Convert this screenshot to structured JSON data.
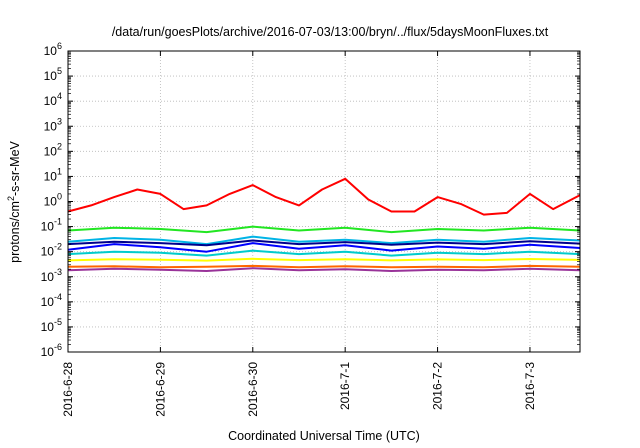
{
  "chart_data": {
    "type": "line",
    "title": "/data/run/goesPlots/archive/2016-07-03/13:00/bryn/../flux/5daysMoonFluxes.txt",
    "xlabel": "Coordinated Universal Time (UTC)",
    "ylabel": {
      "base": "protons/cm",
      "sup": "2",
      "rest": "-s-sr-MeV"
    },
    "yscale": "log",
    "ylim": [
      1e-06,
      1000000.0
    ],
    "y_ticks": [
      {
        "value": 1e-06,
        "base": "10",
        "exp": "-6"
      },
      {
        "value": 1e-05,
        "base": "10",
        "exp": "-5"
      },
      {
        "value": 0.0001,
        "base": "10",
        "exp": "-4"
      },
      {
        "value": 0.001,
        "base": "10",
        "exp": "-3"
      },
      {
        "value": 0.01,
        "base": "10",
        "exp": "-2"
      },
      {
        "value": 0.1,
        "base": "10",
        "exp": "-1"
      },
      {
        "value": 1.0,
        "base": "10",
        "exp": "0"
      },
      {
        "value": 10.0,
        "base": "10",
        "exp": "1"
      },
      {
        "value": 100.0,
        "base": "10",
        "exp": "2"
      },
      {
        "value": 1000.0,
        "base": "10",
        "exp": "3"
      },
      {
        "value": 10000.0,
        "base": "10",
        "exp": "4"
      },
      {
        "value": 100000.0,
        "base": "10",
        "exp": "5"
      },
      {
        "value": 1000000.0,
        "base": "10",
        "exp": "6"
      }
    ],
    "xlim": [
      "2016-06-28 00:00",
      "2016-07-03 13:00"
    ],
    "x_ticks": [
      "2016-6-28",
      "2016-6-29",
      "2016-6-30",
      "2016-7-1",
      "2016-7-2",
      "2016-7-3"
    ],
    "grid": true,
    "series": [
      {
        "color": "#ff0000",
        "x": [
          "2016-06-28 00:00",
          "2016-06-28 06:00",
          "2016-06-28 12:00",
          "2016-06-28 18:00",
          "2016-06-29 00:00",
          "2016-06-29 06:00",
          "2016-06-29 12:00",
          "2016-06-29 18:00",
          "2016-06-30 00:00",
          "2016-06-30 06:00",
          "2016-06-30 12:00",
          "2016-06-30 18:00",
          "2016-07-01 00:00",
          "2016-07-01 06:00",
          "2016-07-01 12:00",
          "2016-07-01 18:00",
          "2016-07-02 00:00",
          "2016-07-02 06:00",
          "2016-07-02 12:00",
          "2016-07-02 18:00",
          "2016-07-03 00:00",
          "2016-07-03 06:00",
          "2016-07-03 13:00"
        ],
        "y": [
          0.4,
          0.7,
          1.5,
          3.0,
          2.0,
          0.5,
          0.7,
          2.0,
          4.5,
          1.5,
          0.7,
          3.0,
          8.0,
          1.2,
          0.4,
          0.4,
          1.5,
          0.8,
          0.3,
          0.35,
          2.0,
          0.5,
          1.8
        ]
      },
      {
        "color": "#22e622",
        "x": [
          "2016-06-28 00:00",
          "2016-06-28 12:00",
          "2016-06-29 00:00",
          "2016-06-29 12:00",
          "2016-06-30 00:00",
          "2016-06-30 12:00",
          "2016-07-01 00:00",
          "2016-07-01 12:00",
          "2016-07-02 00:00",
          "2016-07-02 12:00",
          "2016-07-03 00:00",
          "2016-07-03 13:00"
        ],
        "y": [
          0.07,
          0.09,
          0.08,
          0.06,
          0.1,
          0.07,
          0.09,
          0.06,
          0.08,
          0.07,
          0.09,
          0.07
        ]
      },
      {
        "color": "#00b4e6",
        "x": [
          "2016-06-28 00:00",
          "2016-06-28 12:00",
          "2016-06-29 00:00",
          "2016-06-29 12:00",
          "2016-06-30 00:00",
          "2016-06-30 12:00",
          "2016-07-01 00:00",
          "2016-07-01 12:00",
          "2016-07-02 00:00",
          "2016-07-02 12:00",
          "2016-07-03 00:00",
          "2016-07-03 13:00"
        ],
        "y": [
          0.025,
          0.035,
          0.03,
          0.02,
          0.04,
          0.025,
          0.03,
          0.022,
          0.03,
          0.025,
          0.035,
          0.028
        ]
      },
      {
        "color": "#0000ff",
        "x": [
          "2016-06-28 00:00",
          "2016-06-28 12:00",
          "2016-06-29 00:00",
          "2016-06-29 12:00",
          "2016-06-30 00:00",
          "2016-06-30 12:00",
          "2016-07-01 00:00",
          "2016-07-01 12:00",
          "2016-07-02 00:00",
          "2016-07-02 12:00",
          "2016-07-03 00:00",
          "2016-07-03 13:00"
        ],
        "y": [
          0.012,
          0.02,
          0.015,
          0.01,
          0.022,
          0.013,
          0.018,
          0.011,
          0.016,
          0.013,
          0.019,
          0.014
        ]
      },
      {
        "color": "#00008b",
        "x": [
          "2016-06-28 00:00",
          "2016-06-28 12:00",
          "2016-06-29 00:00",
          "2016-06-29 12:00",
          "2016-06-30 00:00",
          "2016-06-30 12:00",
          "2016-07-01 00:00",
          "2016-07-01 12:00",
          "2016-07-02 00:00",
          "2016-07-02 12:00",
          "2016-07-03 00:00",
          "2016-07-03 13:00"
        ],
        "y": [
          0.02,
          0.025,
          0.022,
          0.018,
          0.028,
          0.02,
          0.024,
          0.019,
          0.023,
          0.02,
          0.026,
          0.021
        ]
      },
      {
        "color": "#00cccc",
        "x": [
          "2016-06-28 00:00",
          "2016-06-28 12:00",
          "2016-06-29 00:00",
          "2016-06-29 12:00",
          "2016-06-30 00:00",
          "2016-06-30 12:00",
          "2016-07-01 00:00",
          "2016-07-01 12:00",
          "2016-07-02 00:00",
          "2016-07-02 12:00",
          "2016-07-03 00:00",
          "2016-07-03 13:00"
        ],
        "y": [
          0.008,
          0.01,
          0.009,
          0.007,
          0.011,
          0.008,
          0.01,
          0.007,
          0.009,
          0.008,
          0.01,
          0.008
        ]
      },
      {
        "color": "#ffff00",
        "x": [
          "2016-06-28 00:00",
          "2016-06-28 12:00",
          "2016-06-29 00:00",
          "2016-06-29 12:00",
          "2016-06-30 00:00",
          "2016-06-30 12:00",
          "2016-07-01 00:00",
          "2016-07-01 12:00",
          "2016-07-02 00:00",
          "2016-07-02 12:00",
          "2016-07-03 00:00",
          "2016-07-03 13:00"
        ],
        "y": [
          0.0045,
          0.005,
          0.0048,
          0.0044,
          0.0052,
          0.0046,
          0.005,
          0.0045,
          0.0049,
          0.0046,
          0.0051,
          0.0047
        ]
      },
      {
        "color": "#ff6600",
        "x": [
          "2016-06-28 00:00",
          "2016-06-28 12:00",
          "2016-06-29 00:00",
          "2016-06-29 12:00",
          "2016-06-30 00:00",
          "2016-06-30 12:00",
          "2016-07-01 00:00",
          "2016-07-01 12:00",
          "2016-07-02 00:00",
          "2016-07-02 12:00",
          "2016-07-03 00:00",
          "2016-07-03 13:00"
        ],
        "y": [
          0.0025,
          0.0026,
          0.0024,
          0.0025,
          0.0027,
          0.0024,
          0.0026,
          0.0024,
          0.0025,
          0.0024,
          0.0027,
          0.0025
        ]
      },
      {
        "color": "#993399",
        "x": [
          "2016-06-28 00:00",
          "2016-06-28 12:00",
          "2016-06-29 00:00",
          "2016-06-29 12:00",
          "2016-06-30 00:00",
          "2016-06-30 12:00",
          "2016-07-01 00:00",
          "2016-07-01 12:00",
          "2016-07-02 00:00",
          "2016-07-02 12:00",
          "2016-07-03 00:00",
          "2016-07-03 13:00"
        ],
        "y": [
          0.0018,
          0.0021,
          0.0019,
          0.0017,
          0.0022,
          0.0018,
          0.002,
          0.0017,
          0.0019,
          0.0018,
          0.0021,
          0.0018
        ]
      }
    ]
  }
}
